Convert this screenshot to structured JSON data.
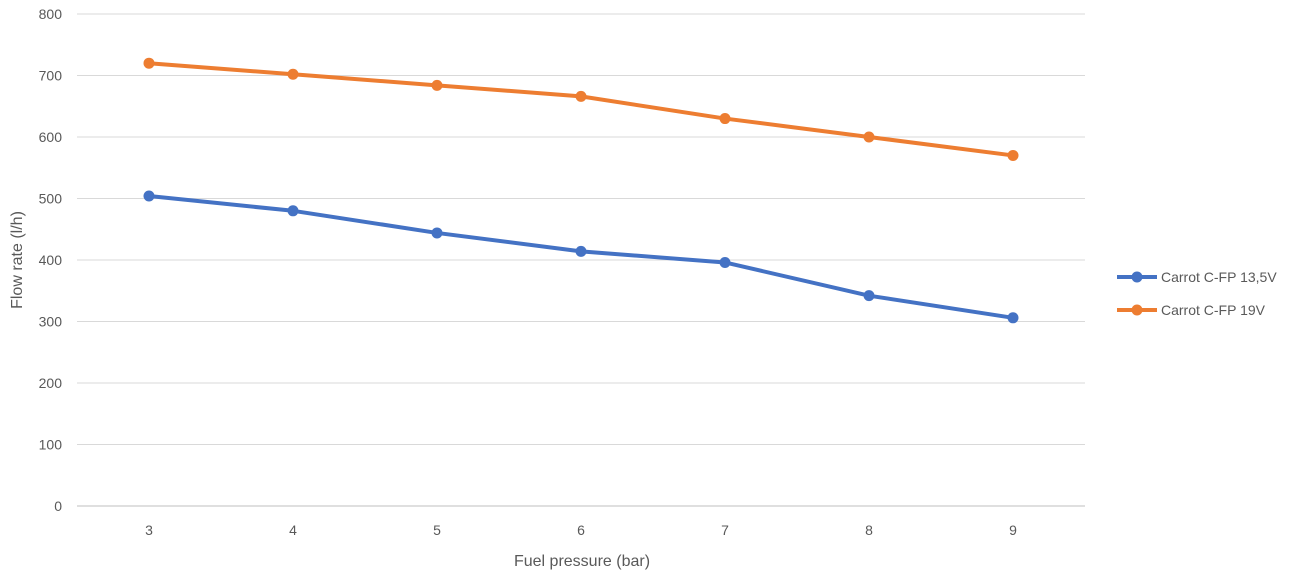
{
  "chart_data": {
    "type": "line",
    "title": "",
    "xlabel": "Fuel pressure (bar)",
    "ylabel": "Flow rate (l/h)",
    "categories": [
      "3",
      "4",
      "5",
      "6",
      "7",
      "8",
      "9"
    ],
    "ylim": [
      0,
      800
    ],
    "yticks": [
      "0",
      "100",
      "200",
      "300",
      "400",
      "500",
      "600",
      "700",
      "800"
    ],
    "grid": true,
    "legend_position": "right",
    "series": [
      {
        "name": "Carrot C-FP 13,5V",
        "color": "#4472c4",
        "values": [
          504,
          480,
          444,
          414,
          396,
          342,
          306
        ]
      },
      {
        "name": "Carrot C-FP 19V",
        "color": "#ed7d31",
        "values": [
          720,
          702,
          684,
          666,
          630,
          600,
          570
        ]
      }
    ]
  }
}
